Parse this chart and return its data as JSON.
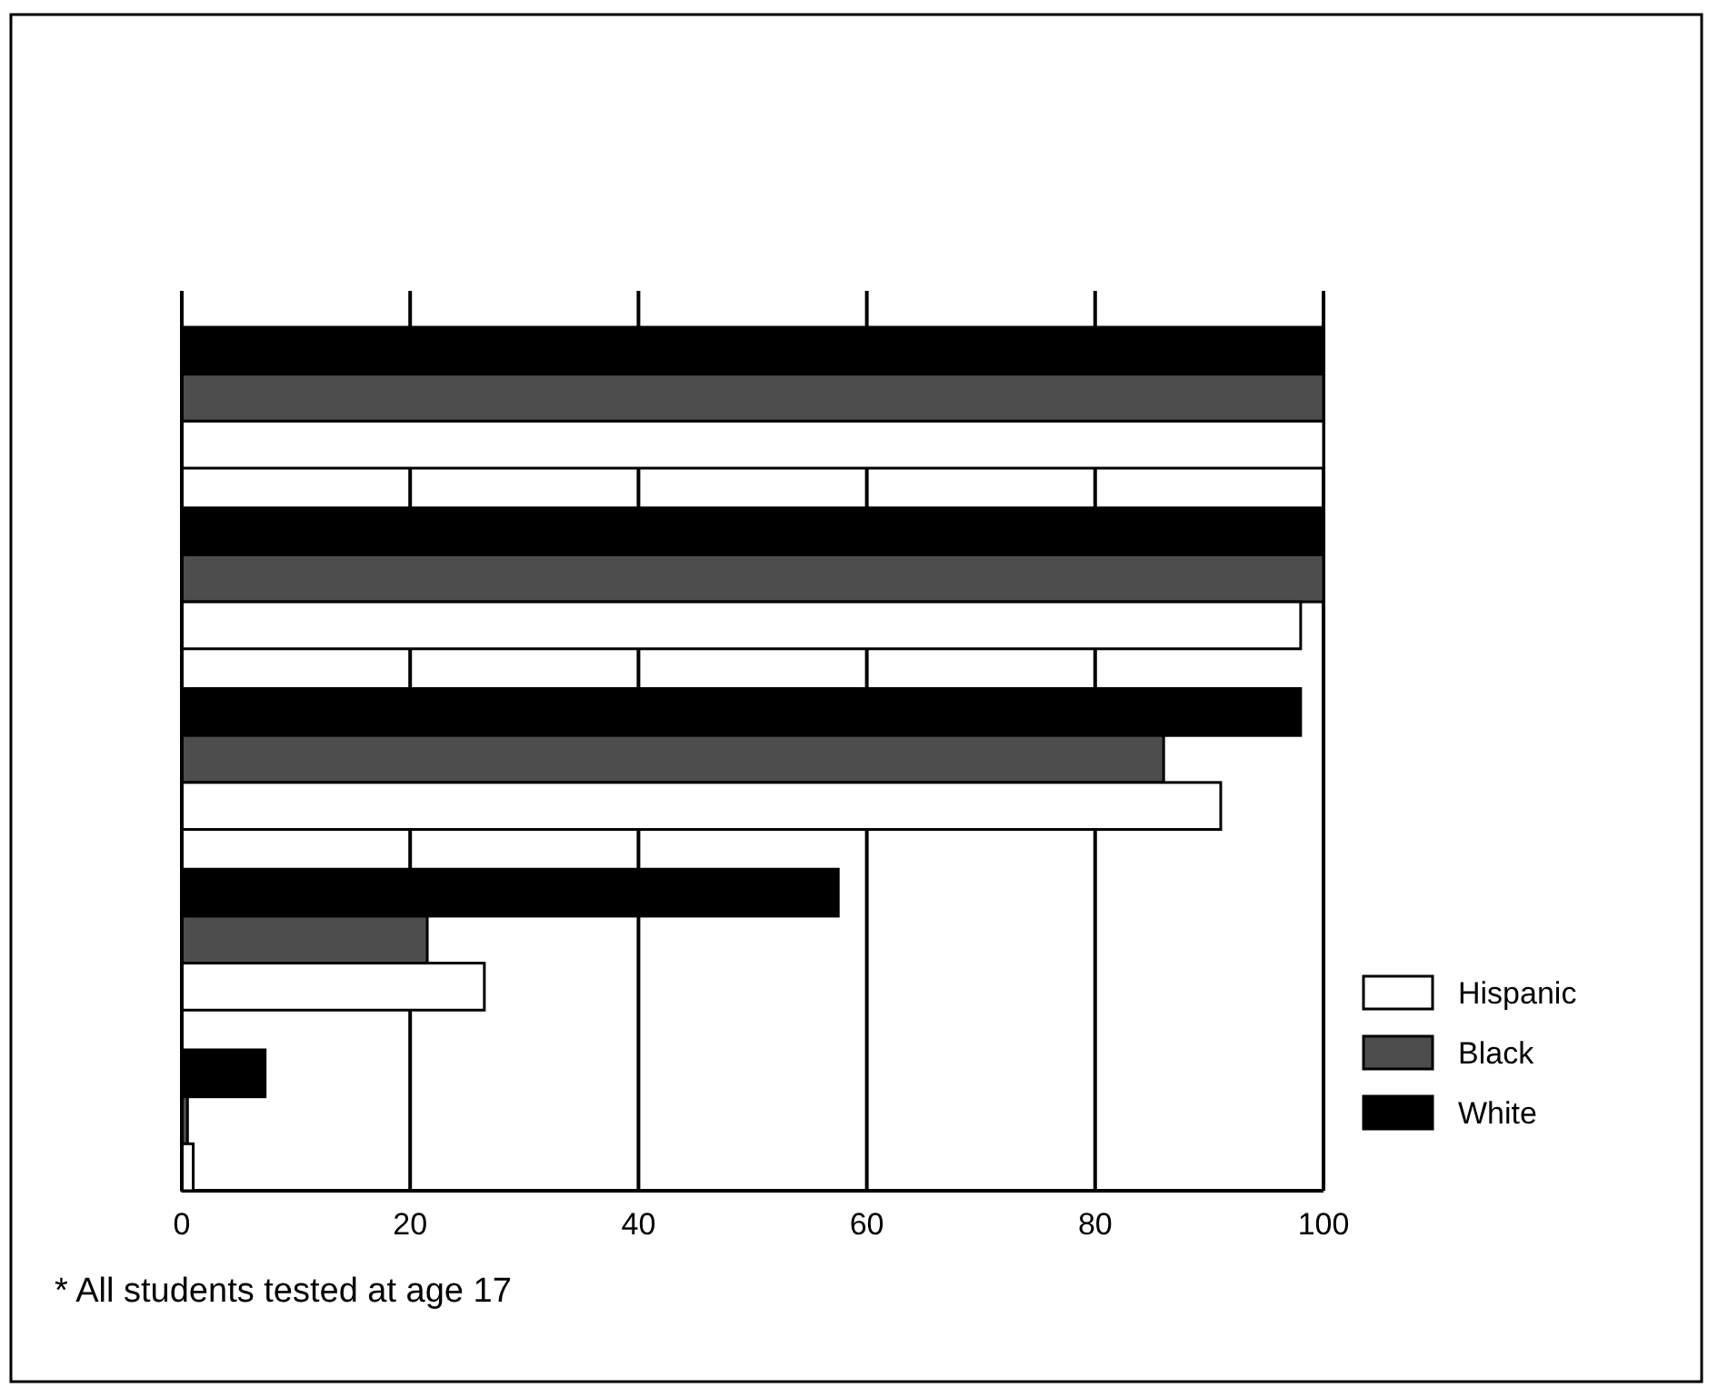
{
  "chart_data": {
    "type": "bar",
    "orientation": "horizontal",
    "categories": [
      null,
      null,
      null,
      null,
      null
    ],
    "series": [
      {
        "name": "White",
        "color": "#000000",
        "values": [
          100,
          100,
          98,
          57.5,
          7.3
        ]
      },
      {
        "name": "Black",
        "color": "#4d4d4d",
        "values": [
          100,
          100,
          86,
          21.5,
          0.5
        ]
      },
      {
        "name": "Hispanic",
        "color": "#ffffff",
        "values": [
          100,
          98,
          91,
          26.5,
          1
        ]
      }
    ],
    "xlim": [
      0,
      100
    ],
    "xticks": [
      0,
      20,
      40,
      60,
      80,
      100
    ],
    "grid": "x",
    "legend": "bottom right",
    "annotations": [
      "*  All students tested at age 17"
    ]
  }
}
